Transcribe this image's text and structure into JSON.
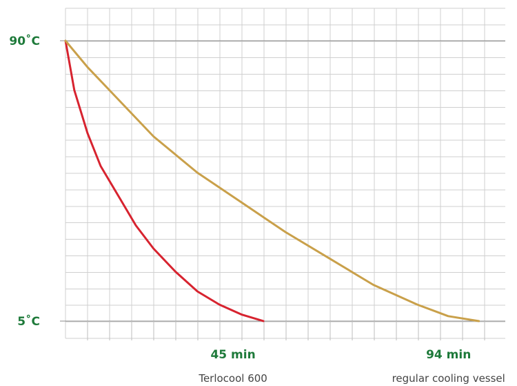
{
  "colors": {
    "label_green": "#1e7a3a",
    "terlocool_red": "#d7232f",
    "regular_gold": "#c9a04a",
    "grid": "#cfcfcf"
  },
  "chart_data": {
    "type": "line",
    "title": "",
    "xlabel": "",
    "ylabel": "",
    "grid": true,
    "xlim": [
      0,
      100
    ],
    "ylim": [
      5,
      90
    ],
    "y_ticks": [
      {
        "value": 90,
        "label": "90˚C"
      },
      {
        "value": 5,
        "label": "5˚C"
      }
    ],
    "x_ticks": [
      {
        "value": 45,
        "label": "45 min"
      },
      {
        "value": 94,
        "label": "94 min"
      }
    ],
    "series": [
      {
        "name": "Terlocool 600",
        "color": "#d7232f",
        "x": [
          0,
          2,
          5,
          8,
          12,
          16,
          20,
          25,
          30,
          35,
          40,
          45
        ],
        "y": [
          90,
          75,
          62,
          52,
          43,
          34,
          27,
          20,
          14,
          10,
          7,
          5
        ]
      },
      {
        "name": "regular cooling vessel",
        "color": "#c9a04a",
        "x": [
          0,
          5,
          10,
          20,
          30,
          40,
          50,
          60,
          70,
          80,
          87,
          94
        ],
        "y": [
          90,
          82,
          75,
          61,
          50,
          41,
          32,
          24,
          16,
          10,
          6.5,
          5
        ]
      }
    ]
  }
}
